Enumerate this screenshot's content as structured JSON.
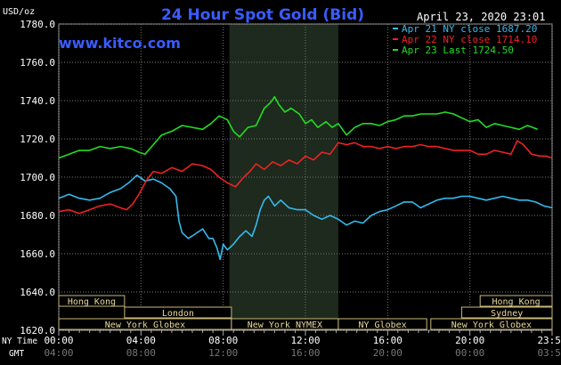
{
  "chart_data": {
    "type": "line",
    "title": "24 Hour Spot Gold (Bid)",
    "source": "www.kitco.com",
    "timestamp": "April 23, 2020 23:01",
    "yunit": "USD/oz",
    "ylim": [
      1620,
      1780
    ],
    "yticks": [
      "1620.0",
      "1640.0",
      "1660.0",
      "1680.0",
      "1700.0",
      "1720.0",
      "1740.0",
      "1760.0",
      "1780.0"
    ],
    "xlim": [
      0,
      24
    ],
    "x_label_ny": "NY Time",
    "x_label_gmt": "GMT",
    "xticks_ny": [
      "00:00",
      "04:00",
      "08:00",
      "12:00",
      "16:00",
      "20:00",
      "23:59"
    ],
    "xticks_gmt": [
      "04:00",
      "08:00",
      "12:00",
      "16:00",
      "20:00",
      "00:00",
      "03:59"
    ],
    "highlight_hours": [
      8.3,
      13.6
    ],
    "legend": [
      {
        "label": "Apr 21 NY close 1687.20",
        "color": "#33bbee"
      },
      {
        "label": "Apr 22 NY close 1714.10",
        "color": "#ee2222"
      },
      {
        "label": "Apr 23 Last 1724.50",
        "color": "#22dd22"
      }
    ],
    "series": [
      {
        "name": "Apr 21",
        "color": "#33bbee",
        "points": [
          [
            0,
            1689
          ],
          [
            0.5,
            1691
          ],
          [
            1,
            1689
          ],
          [
            1.5,
            1688
          ],
          [
            2,
            1689
          ],
          [
            2.5,
            1692
          ],
          [
            3,
            1694
          ],
          [
            3.4,
            1697
          ],
          [
            3.8,
            1701
          ],
          [
            4.2,
            1698
          ],
          [
            4.6,
            1699
          ],
          [
            5,
            1697
          ],
          [
            5.4,
            1694
          ],
          [
            5.7,
            1690
          ],
          [
            5.85,
            1677
          ],
          [
            6,
            1671
          ],
          [
            6.3,
            1668
          ],
          [
            6.6,
            1670
          ],
          [
            7,
            1673
          ],
          [
            7.3,
            1668
          ],
          [
            7.5,
            1668
          ],
          [
            7.7,
            1663
          ],
          [
            7.85,
            1657
          ],
          [
            8,
            1665
          ],
          [
            8.2,
            1662
          ],
          [
            8.5,
            1665
          ],
          [
            8.8,
            1669
          ],
          [
            9.1,
            1672
          ],
          [
            9.4,
            1669
          ],
          [
            9.6,
            1675
          ],
          [
            9.8,
            1683
          ],
          [
            10,
            1688
          ],
          [
            10.2,
            1690
          ],
          [
            10.5,
            1685
          ],
          [
            10.8,
            1688
          ],
          [
            11.2,
            1684
          ],
          [
            11.6,
            1683
          ],
          [
            12,
            1683
          ],
          [
            12.4,
            1680
          ],
          [
            12.8,
            1678
          ],
          [
            13.2,
            1680
          ],
          [
            13.6,
            1678
          ],
          [
            14,
            1675
          ],
          [
            14.4,
            1677
          ],
          [
            14.8,
            1676
          ],
          [
            15.2,
            1680
          ],
          [
            15.6,
            1682
          ],
          [
            16,
            1683
          ],
          [
            16.4,
            1685
          ],
          [
            16.8,
            1687
          ],
          [
            17.2,
            1687
          ],
          [
            17.6,
            1684
          ],
          [
            18,
            1686
          ],
          [
            18.4,
            1688
          ],
          [
            18.8,
            1689
          ],
          [
            19.2,
            1689
          ],
          [
            19.6,
            1690
          ],
          [
            20,
            1690
          ],
          [
            20.4,
            1689
          ],
          [
            20.8,
            1688
          ],
          [
            21.2,
            1689
          ],
          [
            21.6,
            1690
          ],
          [
            22,
            1689
          ],
          [
            22.4,
            1688
          ],
          [
            22.8,
            1688
          ],
          [
            23.2,
            1687
          ],
          [
            23.6,
            1685
          ],
          [
            24,
            1684
          ]
        ]
      },
      {
        "name": "Apr 22",
        "color": "#ee2222",
        "points": [
          [
            0,
            1682
          ],
          [
            0.5,
            1683
          ],
          [
            1,
            1681
          ],
          [
            1.5,
            1683
          ],
          [
            2,
            1685
          ],
          [
            2.5,
            1686
          ],
          [
            3,
            1684
          ],
          [
            3.3,
            1683
          ],
          [
            3.6,
            1686
          ],
          [
            3.9,
            1691
          ],
          [
            4.1,
            1695
          ],
          [
            4.3,
            1699
          ],
          [
            4.6,
            1703
          ],
          [
            5,
            1702
          ],
          [
            5.5,
            1705
          ],
          [
            6,
            1703
          ],
          [
            6.5,
            1707
          ],
          [
            7,
            1706
          ],
          [
            7.4,
            1704
          ],
          [
            7.8,
            1700
          ],
          [
            8.2,
            1697
          ],
          [
            8.6,
            1695
          ],
          [
            9,
            1700
          ],
          [
            9.3,
            1703
          ],
          [
            9.6,
            1707
          ],
          [
            10,
            1704
          ],
          [
            10.4,
            1708
          ],
          [
            10.8,
            1706
          ],
          [
            11.2,
            1709
          ],
          [
            11.6,
            1707
          ],
          [
            12,
            1711
          ],
          [
            12.4,
            1709
          ],
          [
            12.8,
            1713
          ],
          [
            13.2,
            1712
          ],
          [
            13.6,
            1718
          ],
          [
            14,
            1717
          ],
          [
            14.4,
            1718
          ],
          [
            14.8,
            1716
          ],
          [
            15.2,
            1716
          ],
          [
            15.6,
            1715
          ],
          [
            16,
            1716
          ],
          [
            16.4,
            1715
          ],
          [
            16.8,
            1716
          ],
          [
            17.2,
            1716
          ],
          [
            17.6,
            1717
          ],
          [
            18,
            1716
          ],
          [
            18.4,
            1716
          ],
          [
            18.8,
            1715
          ],
          [
            19.2,
            1714
          ],
          [
            19.6,
            1714
          ],
          [
            20,
            1714
          ],
          [
            20.4,
            1712
          ],
          [
            20.8,
            1712
          ],
          [
            21.2,
            1714
          ],
          [
            21.6,
            1713
          ],
          [
            22,
            1712
          ],
          [
            22.3,
            1719
          ],
          [
            22.6,
            1717
          ],
          [
            23,
            1712
          ],
          [
            23.4,
            1711
          ],
          [
            23.7,
            1711
          ],
          [
            24,
            1710
          ]
        ]
      },
      {
        "name": "Apr 23",
        "color": "#22dd22",
        "points": [
          [
            0,
            1710
          ],
          [
            0.5,
            1712
          ],
          [
            1,
            1714
          ],
          [
            1.5,
            1714
          ],
          [
            2,
            1716
          ],
          [
            2.5,
            1715
          ],
          [
            3,
            1716
          ],
          [
            3.5,
            1715
          ],
          [
            3.9,
            1713
          ],
          [
            4.2,
            1712
          ],
          [
            4.6,
            1717
          ],
          [
            5,
            1722
          ],
          [
            5.5,
            1724
          ],
          [
            6,
            1727
          ],
          [
            6.5,
            1726
          ],
          [
            7,
            1725
          ],
          [
            7.4,
            1728
          ],
          [
            7.8,
            1732
          ],
          [
            8.2,
            1730
          ],
          [
            8.5,
            1724
          ],
          [
            8.8,
            1721
          ],
          [
            9.2,
            1726
          ],
          [
            9.6,
            1727
          ],
          [
            10,
            1736
          ],
          [
            10.3,
            1739
          ],
          [
            10.5,
            1742
          ],
          [
            10.7,
            1738
          ],
          [
            11,
            1734
          ],
          [
            11.3,
            1736
          ],
          [
            11.7,
            1733
          ],
          [
            12,
            1728
          ],
          [
            12.3,
            1730
          ],
          [
            12.6,
            1726
          ],
          [
            13,
            1729
          ],
          [
            13.3,
            1726
          ],
          [
            13.6,
            1728
          ],
          [
            14,
            1722
          ],
          [
            14.4,
            1726
          ],
          [
            14.8,
            1728
          ],
          [
            15.2,
            1728
          ],
          [
            15.6,
            1727
          ],
          [
            16,
            1729
          ],
          [
            16.4,
            1730
          ],
          [
            16.8,
            1732
          ],
          [
            17.2,
            1732
          ],
          [
            17.6,
            1733
          ],
          [
            18,
            1733
          ],
          [
            18.4,
            1733
          ],
          [
            18.8,
            1734
          ],
          [
            19.2,
            1733
          ],
          [
            19.6,
            1731
          ],
          [
            20,
            1729
          ],
          [
            20.4,
            1730
          ],
          [
            20.8,
            1726
          ],
          [
            21.2,
            1728
          ],
          [
            21.6,
            1727
          ],
          [
            22,
            1726
          ],
          [
            22.4,
            1725
          ],
          [
            22.8,
            1727
          ],
          [
            23.3,
            1725
          ]
        ]
      }
    ],
    "sessions": [
      {
        "label": "Hong Kong",
        "start": 0,
        "end": 3.2,
        "row": 1
      },
      {
        "label": "London",
        "start": 3.2,
        "end": 8.4,
        "row": 2
      },
      {
        "label": "New York Globex",
        "start": 0,
        "end": 8.4,
        "row": 3
      },
      {
        "label": "New York NYMEX",
        "start": 8.4,
        "end": 13.6,
        "row": 3
      },
      {
        "label": "NY Globex",
        "start": 13.6,
        "end": 17.9,
        "row": 3
      },
      {
        "label": "Hong Kong",
        "start": 20.5,
        "end": 24,
        "row": 1
      },
      {
        "label": "Sydney",
        "start": 19.6,
        "end": 24,
        "row": 2
      },
      {
        "label": "New York Globex",
        "start": 18.1,
        "end": 24,
        "row": 3
      }
    ]
  }
}
